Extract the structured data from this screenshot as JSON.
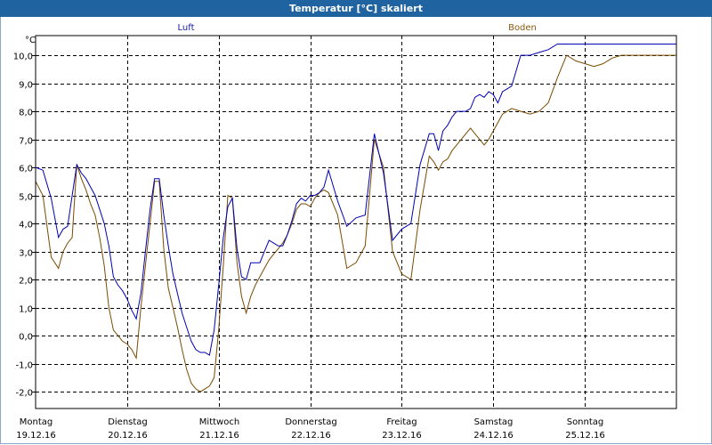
{
  "window": {
    "title": "Temperatur [°C] skaliert"
  },
  "colors": {
    "luft": "#0000b4",
    "boden": "#7a4a00",
    "titlebar": "#1f63a0"
  },
  "chart_data": {
    "type": "line",
    "title": "Temperatur [°C] skaliert",
    "ylabel": "°C",
    "ylim": [
      -2.6,
      10.7
    ],
    "yticks": [
      -2.0,
      -1.0,
      0.0,
      1.0,
      2.0,
      3.0,
      4.0,
      5.0,
      6.0,
      7.0,
      8.0,
      9.0,
      10.0
    ],
    "ytick_labels": [
      "-2,0",
      "-1,0",
      "0,0",
      "1,0",
      "2,0",
      "3,0",
      "4,0",
      "5,0",
      "6,0",
      "7,0",
      "8,0",
      "9,0",
      "10,0"
    ],
    "xlim": [
      0,
      7
    ],
    "x_days": [
      {
        "day": "Montag",
        "date": "19.12.16"
      },
      {
        "day": "Dienstag",
        "date": "20.12.16"
      },
      {
        "day": "Mittwoch",
        "date": "21.12.16"
      },
      {
        "day": "Donnerstag",
        "date": "22.12.16"
      },
      {
        "day": "Freitag",
        "date": "23.12.16"
      },
      {
        "day": "Samstag",
        "date": "24.12.16"
      },
      {
        "day": "Sonntag",
        "date": "25.12.16"
      }
    ],
    "grid": true,
    "series": [
      {
        "name": "Luft",
        "x": [
          0,
          0.08,
          0.17,
          0.25,
          0.3,
          0.35,
          0.4,
          0.45,
          0.5,
          0.55,
          0.6,
          0.65,
          0.7,
          0.75,
          0.8,
          0.85,
          0.9,
          0.95,
          1.0,
          1.05,
          1.1,
          1.15,
          1.2,
          1.25,
          1.3,
          1.35,
          1.4,
          1.45,
          1.5,
          1.55,
          1.6,
          1.65,
          1.7,
          1.75,
          1.8,
          1.85,
          1.9,
          1.95,
          2.0,
          2.05,
          2.1,
          2.15,
          2.2,
          2.25,
          2.3,
          2.35,
          2.4,
          2.45,
          2.5,
          2.55,
          2.6,
          2.65,
          2.7,
          2.75,
          2.8,
          2.85,
          2.9,
          2.95,
          3.0,
          3.05,
          3.1,
          3.15,
          3.2,
          3.3,
          3.4,
          3.5,
          3.6,
          3.7,
          3.8,
          3.9,
          4.0,
          4.1,
          4.2,
          4.3,
          4.35,
          4.4,
          4.45,
          4.5,
          4.55,
          4.6,
          4.65,
          4.7,
          4.75,
          4.8,
          4.85,
          4.9,
          4.95,
          5.0,
          5.05,
          5.1,
          5.15,
          5.2,
          5.3,
          5.4,
          5.5,
          5.6,
          5.7,
          5.8,
          5.9,
          6.0,
          6.1,
          6.2,
          6.3,
          6.4,
          6.5,
          6.6,
          6.7,
          6.8,
          6.9,
          7.0
        ],
        "y": [
          6.0,
          5.9,
          4.9,
          3.5,
          3.8,
          3.9,
          5.0,
          6.1,
          5.8,
          5.6,
          5.3,
          5.0,
          4.5,
          4.0,
          3.2,
          2.1,
          1.8,
          1.6,
          1.3,
          0.9,
          0.6,
          1.5,
          3.0,
          4.5,
          5.6,
          5.6,
          4.3,
          3.2,
          2.2,
          1.5,
          0.8,
          0.3,
          -0.2,
          -0.5,
          -0.6,
          -0.6,
          -0.7,
          0.2,
          1.8,
          3.5,
          4.6,
          4.9,
          3.1,
          2.1,
          2.0,
          2.6,
          2.6,
          2.6,
          3.0,
          3.4,
          3.3,
          3.2,
          3.2,
          3.6,
          4.1,
          4.7,
          4.9,
          4.8,
          5.0,
          5.0,
          5.1,
          5.3,
          5.9,
          4.8,
          3.9,
          4.2,
          4.3,
          7.2,
          5.8,
          3.4,
          3.8,
          4.0,
          6.1,
          7.2,
          7.2,
          6.6,
          7.3,
          7.5,
          7.8,
          8.0,
          8.0,
          8.0,
          8.1,
          8.5,
          8.6,
          8.5,
          8.7,
          8.6,
          8.3,
          8.7,
          8.8,
          8.9,
          10.0,
          10.0,
          10.1,
          10.2,
          10.4,
          10.4,
          10.4,
          10.4,
          10.4,
          10.4,
          10.4,
          10.4,
          10.4,
          10.4,
          10.4,
          10.4,
          10.4,
          10.4
        ]
      },
      {
        "name": "Boden",
        "x": [
          0,
          0.08,
          0.17,
          0.25,
          0.3,
          0.35,
          0.4,
          0.45,
          0.5,
          0.55,
          0.6,
          0.65,
          0.7,
          0.75,
          0.8,
          0.85,
          0.9,
          0.95,
          1.0,
          1.05,
          1.1,
          1.15,
          1.2,
          1.25,
          1.3,
          1.35,
          1.4,
          1.45,
          1.5,
          1.55,
          1.6,
          1.65,
          1.7,
          1.75,
          1.8,
          1.85,
          1.9,
          1.95,
          2.0,
          2.05,
          2.1,
          2.15,
          2.2,
          2.25,
          2.3,
          2.35,
          2.4,
          2.45,
          2.5,
          2.55,
          2.6,
          2.65,
          2.7,
          2.75,
          2.8,
          2.85,
          2.9,
          2.95,
          3.0,
          3.05,
          3.1,
          3.15,
          3.2,
          3.3,
          3.4,
          3.5,
          3.6,
          3.7,
          3.8,
          3.9,
          4.0,
          4.1,
          4.2,
          4.3,
          4.35,
          4.4,
          4.45,
          4.5,
          4.55,
          4.6,
          4.65,
          4.7,
          4.75,
          4.8,
          4.85,
          4.9,
          4.95,
          5.0,
          5.05,
          5.1,
          5.15,
          5.2,
          5.3,
          5.4,
          5.5,
          5.6,
          5.7,
          5.8,
          5.9,
          6.0,
          6.1,
          6.2,
          6.3,
          6.4,
          6.5,
          6.6,
          6.7,
          6.8,
          6.9,
          7.0
        ],
        "y": [
          5.5,
          5.0,
          2.8,
          2.4,
          3.0,
          3.3,
          3.5,
          6.1,
          5.6,
          5.2,
          4.7,
          4.3,
          3.5,
          2.5,
          1.0,
          0.2,
          0.0,
          -0.2,
          -0.3,
          -0.5,
          -0.8,
          1.0,
          2.5,
          4.0,
          5.5,
          5.5,
          3.1,
          1.7,
          1.0,
          0.3,
          -0.5,
          -1.2,
          -1.7,
          -1.9,
          -2.0,
          -1.9,
          -1.8,
          -1.5,
          0.2,
          2.5,
          5.0,
          4.9,
          2.6,
          1.4,
          0.8,
          1.4,
          1.8,
          2.1,
          2.4,
          2.7,
          2.9,
          3.1,
          3.3,
          3.6,
          4.0,
          4.5,
          4.7,
          4.7,
          4.6,
          4.9,
          5.1,
          5.2,
          5.1,
          4.3,
          2.4,
          2.6,
          3.2,
          7.0,
          6.0,
          3.0,
          2.2,
          2.0,
          4.5,
          6.4,
          6.2,
          5.9,
          6.2,
          6.3,
          6.6,
          6.8,
          7.0,
          7.2,
          7.4,
          7.2,
          7.0,
          6.8,
          7.0,
          7.3,
          7.6,
          7.9,
          8.0,
          8.1,
          8.0,
          7.9,
          8.0,
          8.3,
          9.2,
          10.0,
          9.8,
          9.7,
          9.6,
          9.7,
          9.9,
          10.0,
          10.0,
          10.0,
          10.0,
          10.0,
          10.0,
          10.0
        ]
      }
    ]
  }
}
